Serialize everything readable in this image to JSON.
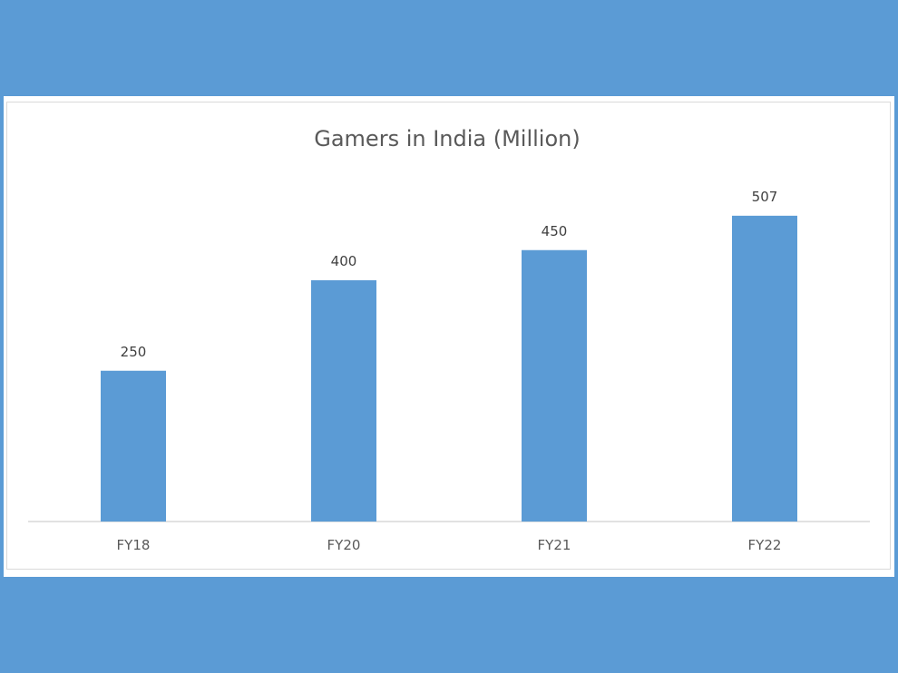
{
  "chart_data": {
    "type": "bar",
    "title": "Gamers in India (Million)",
    "categories": [
      "FY18",
      "FY20",
      "FY21",
      "FY22"
    ],
    "values": [
      250,
      400,
      450,
      507
    ],
    "xlabel": "",
    "ylabel": "",
    "ylim": [
      0,
      600
    ],
    "grid": false,
    "legend": "none",
    "bar_color": "#5b9bd5",
    "background_color": "#5b9bd5"
  }
}
